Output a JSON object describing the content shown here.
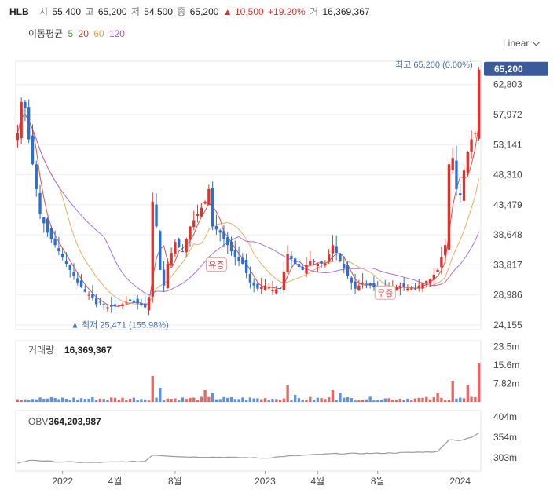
{
  "header": {
    "symbol": "HLB",
    "open_label": "시",
    "open": "55,400",
    "high_label": "고",
    "high": "65,200",
    "low_label": "저",
    "low": "54,500",
    "close_label": "종",
    "close": "65,200",
    "change": "▲ 10,500",
    "change_pct": "+19.20%",
    "volume_label": "거",
    "volume": "16,369,367"
  },
  "ma": {
    "label": "이동평균",
    "periods": [
      {
        "value": "5",
        "color": "#3aa53a"
      },
      {
        "value": "20",
        "color": "#e0312b"
      },
      {
        "value": "60",
        "color": "#e8a046"
      },
      {
        "value": "120",
        "color": "#9b59d6"
      }
    ]
  },
  "scale_selector": "Linear",
  "colors": {
    "up": "#e0312b",
    "down": "#2a6fd6",
    "obv": "#999999",
    "grid": "#eeeeee",
    "marker": "#4a6fa5"
  },
  "chart_data": [
    {
      "type": "candlestick",
      "y_ticks": [
        "62,803",
        "57,972",
        "53,141",
        "48,310",
        "43,479",
        "38,648",
        "33,817",
        "28,986",
        "24,155"
      ],
      "y_tick_values": [
        62803,
        57972,
        53141,
        48310,
        43479,
        38648,
        33817,
        28986,
        24155
      ],
      "ylim": [
        24155,
        65800
      ],
      "x_ticks": [
        "2022",
        "4월",
        "8월",
        "2023",
        "4월",
        "8월",
        "2024"
      ],
      "x_tick_positions": [
        12,
        26,
        42,
        66,
        80,
        96,
        118
      ],
      "week_count": 124,
      "close_anchors": [
        [
          0,
          55000
        ],
        [
          1,
          60000
        ],
        [
          2,
          59000
        ],
        [
          3,
          54000
        ],
        [
          4,
          50000
        ],
        [
          5,
          46000
        ],
        [
          6,
          42000
        ],
        [
          8,
          39000
        ],
        [
          10,
          37000
        ],
        [
          12,
          35000
        ],
        [
          14,
          33000
        ],
        [
          16,
          31000
        ],
        [
          18,
          29500
        ],
        [
          20,
          28500
        ],
        [
          21,
          27500
        ],
        [
          22,
          27800
        ],
        [
          24,
          27000
        ],
        [
          26,
          27200
        ],
        [
          28,
          27500
        ],
        [
          30,
          28000
        ],
        [
          32,
          27600
        ],
        [
          34,
          27000
        ],
        [
          35,
          28500
        ],
        [
          36,
          44000
        ],
        [
          37,
          40000
        ],
        [
          38,
          33000
        ],
        [
          39,
          30500
        ],
        [
          40,
          34000
        ],
        [
          42,
          37500
        ],
        [
          44,
          36000
        ],
        [
          46,
          40000
        ],
        [
          48,
          42000
        ],
        [
          50,
          44000
        ],
        [
          51,
          46000
        ],
        [
          52,
          40000
        ],
        [
          54,
          39000
        ],
        [
          56,
          37000
        ],
        [
          58,
          35000
        ],
        [
          60,
          34000
        ],
        [
          62,
          31000
        ],
        [
          64,
          30000
        ],
        [
          66,
          30500
        ],
        [
          68,
          29800
        ],
        [
          70,
          30000
        ],
        [
          72,
          35500
        ],
        [
          74,
          34000
        ],
        [
          76,
          33000
        ],
        [
          78,
          34500
        ],
        [
          80,
          34000
        ],
        [
          82,
          34000
        ],
        [
          84,
          37000
        ],
        [
          86,
          34500
        ],
        [
          88,
          32000
        ],
        [
          90,
          30000
        ],
        [
          92,
          31000
        ],
        [
          94,
          30500
        ],
        [
          96,
          30000
        ],
        [
          98,
          29500
        ],
        [
          100,
          30000
        ],
        [
          102,
          30500
        ],
        [
          104,
          30000
        ],
        [
          106,
          30000
        ],
        [
          108,
          31000
        ],
        [
          110,
          31500
        ],
        [
          112,
          33000
        ],
        [
          114,
          37000
        ],
        [
          115,
          50000
        ],
        [
          116,
          51000
        ],
        [
          117,
          46000
        ],
        [
          118,
          45000
        ],
        [
          119,
          49000
        ],
        [
          120,
          52000
        ],
        [
          121,
          54000
        ],
        [
          122,
          55000
        ],
        [
          123,
          65200
        ]
      ],
      "high_marker": {
        "text": "최고 65,200 (0.00%)",
        "week": 123,
        "value": 65200
      },
      "low_marker": {
        "text": "▲ 최저 25,471 (155.98%)",
        "week": 31,
        "value": 25471
      },
      "current_price": "65,200",
      "annotations": [
        {
          "text": "유증",
          "week": 53,
          "value": 33817
        },
        {
          "text": "무증",
          "week": 98,
          "value": 29300
        }
      ]
    },
    {
      "type": "bar",
      "title": "거래량",
      "last_value": "16,369,367",
      "y_ticks": [
        "23.5m",
        "15.6m",
        "7.82m"
      ],
      "y_tick_values": [
        23.5,
        15.6,
        7.82
      ],
      "ylim": [
        0,
        26
      ],
      "unit": "m",
      "spikes": [
        [
          36,
          11
        ],
        [
          38,
          6
        ],
        [
          50,
          5
        ],
        [
          52,
          4
        ],
        [
          72,
          7
        ],
        [
          74,
          3
        ],
        [
          84,
          5
        ],
        [
          86,
          4
        ],
        [
          112,
          4
        ],
        [
          116,
          9
        ],
        [
          120,
          7
        ],
        [
          123,
          16.37
        ]
      ]
    },
    {
      "type": "line",
      "title": "OBV",
      "last_value": "364,203,987",
      "y_ticks": [
        "404m",
        "354m",
        "303m"
      ],
      "y_tick_values": [
        404,
        354,
        303
      ],
      "ylim": [
        270,
        420
      ],
      "anchors": [
        [
          0,
          290
        ],
        [
          4,
          297
        ],
        [
          10,
          293
        ],
        [
          20,
          291
        ],
        [
          34,
          294
        ],
        [
          36,
          310
        ],
        [
          44,
          305
        ],
        [
          56,
          304
        ],
        [
          66,
          302
        ],
        [
          72,
          307
        ],
        [
          84,
          313
        ],
        [
          96,
          314
        ],
        [
          112,
          318
        ],
        [
          115,
          348
        ],
        [
          118,
          346
        ],
        [
          121,
          353
        ],
        [
          123,
          364.2
        ]
      ]
    }
  ]
}
